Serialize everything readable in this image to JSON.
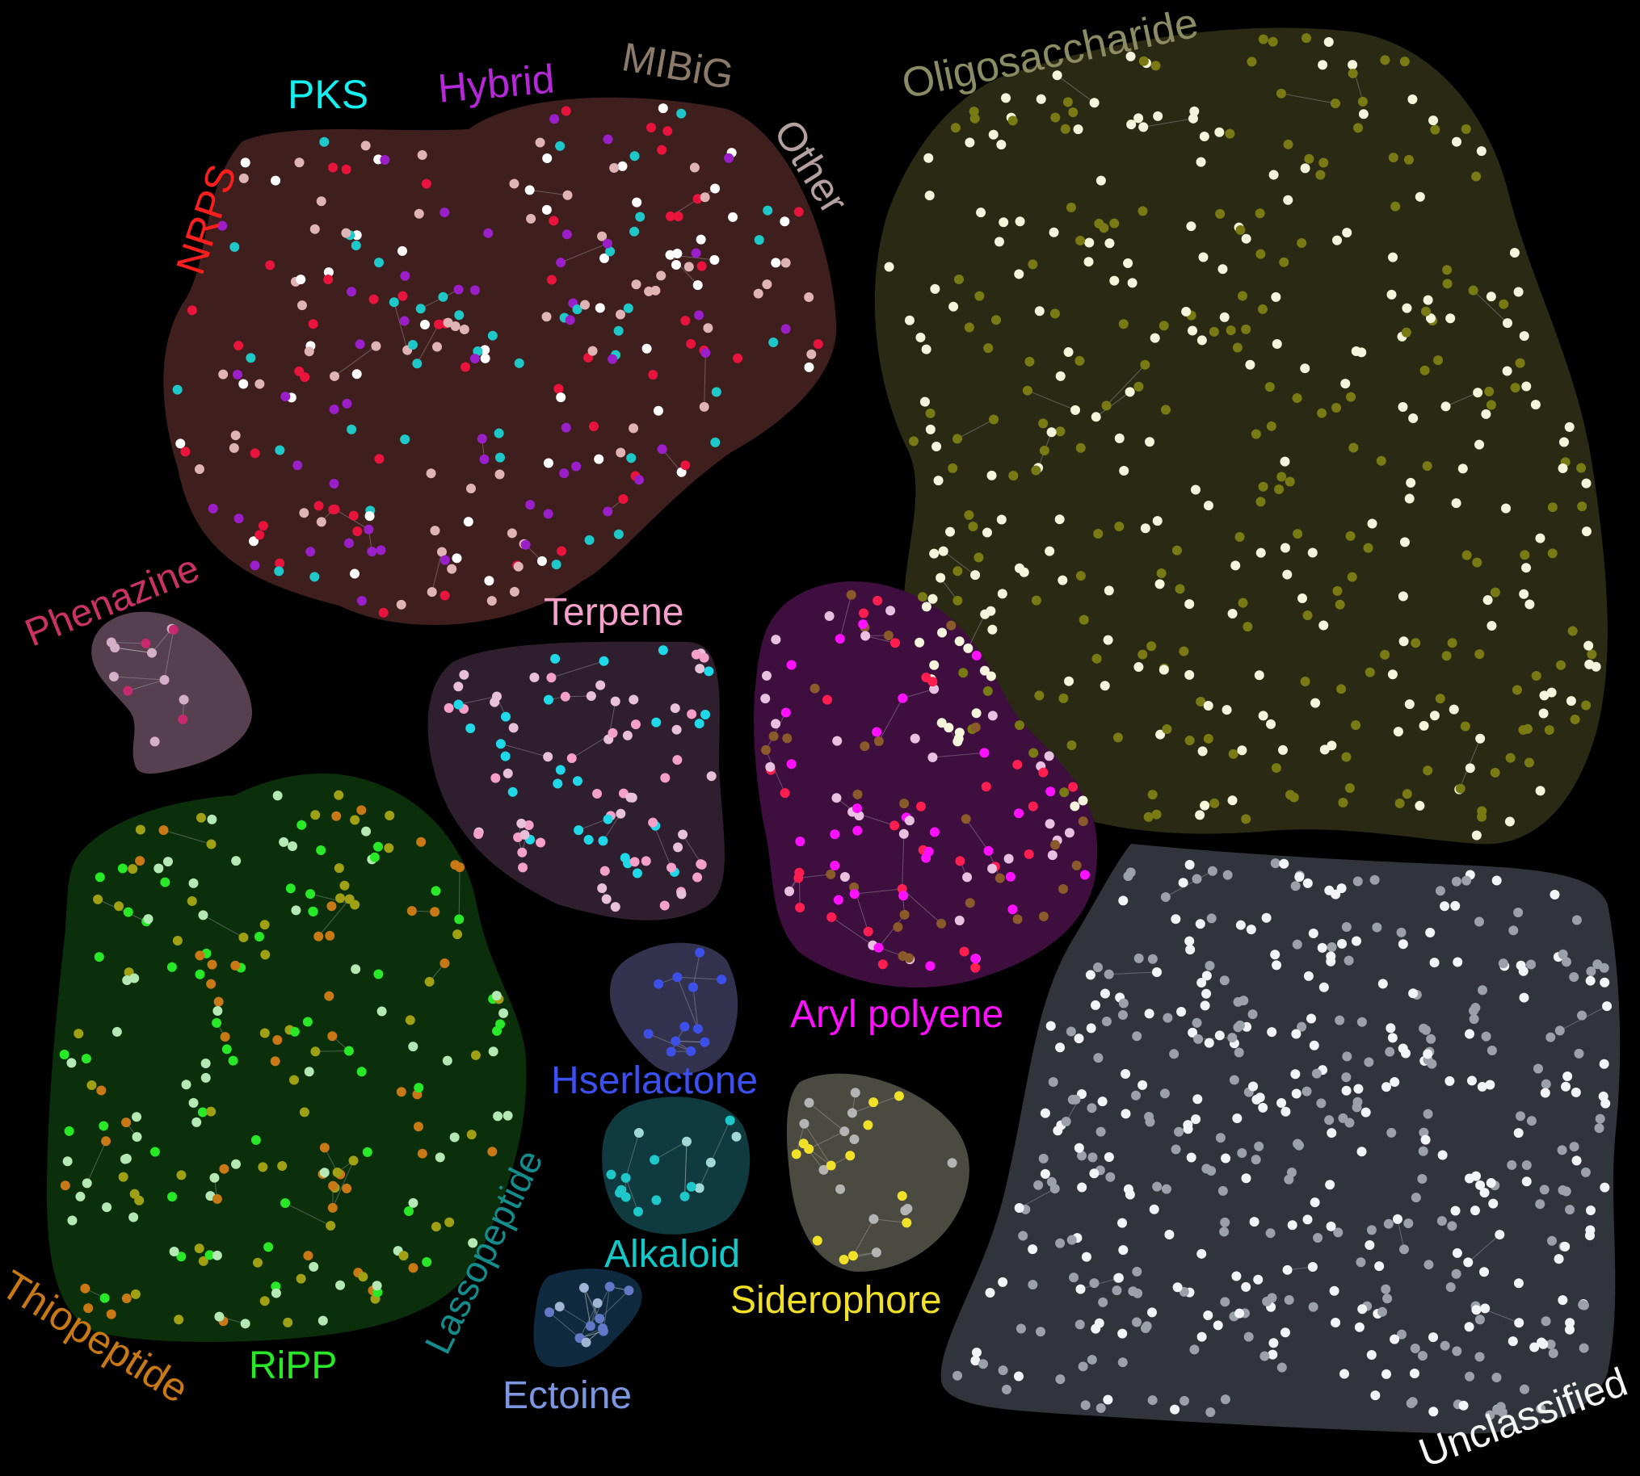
{
  "regions": [
    {
      "key": "nrps",
      "fill": "#3f1e1e",
      "nodes": [
        "#e8143c",
        "#9b1fc8",
        "#1fc8c8",
        "#e0b4b4",
        "#ffffff"
      ]
    },
    {
      "key": "oligosaccharide",
      "fill": "#2a2a14",
      "nodes": [
        "#7a7a14",
        "#f5f5dc"
      ]
    },
    {
      "key": "phenazine",
      "fill": "#56404f",
      "nodes": [
        "#d4b0c8",
        "#c8286e"
      ]
    },
    {
      "key": "terpene",
      "fill": "#2f1e2e",
      "nodes": [
        "#f5a0c8",
        "#e8c0d8",
        "#1fd8e8"
      ]
    },
    {
      "key": "aryl_polyene",
      "fill": "#3e0e3e",
      "nodes": [
        "#ff10ff",
        "#e8c0e0",
        "#8b5a2b",
        "#ff1e50"
      ]
    },
    {
      "key": "ripp",
      "fill": "#0b2e0b",
      "nodes": [
        "#28e828",
        "#b4e8b4",
        "#c87814",
        "#a0a014"
      ]
    },
    {
      "key": "hserlactone",
      "fill": "#32324e",
      "nodes": [
        "#3c50e8"
      ]
    },
    {
      "key": "alkaloid",
      "fill": "#0f3a3f",
      "nodes": [
        "#1fc8c8",
        "#a0d8d8"
      ]
    },
    {
      "key": "siderophore",
      "fill": "#4a4a40",
      "nodes": [
        "#f0e028",
        "#b4b4b4"
      ]
    },
    {
      "key": "ectoine",
      "fill": "#0f2a3f",
      "nodes": [
        "#6478c8",
        "#a0b4d4"
      ]
    },
    {
      "key": "unclassified",
      "fill": "#31353b",
      "nodes": [
        "#f2f4f8",
        "#9ca0a8"
      ]
    }
  ],
  "labels": {
    "nrps": "NRPS",
    "pks": "PKS",
    "hybrid": "Hybrid",
    "mibig": "MIBiG",
    "other": "Other",
    "oligosaccharide": "Oligosaccharide",
    "phenazine": "Phenazine",
    "terpene": "Terpene",
    "aryl_polyene": "Aryl polyene",
    "thiopeptide": "Thiopeptide",
    "ripp": "RiPP",
    "lassopeptide": "Lassopeptide",
    "hserlactone": "Hserlactone",
    "alkaloid": "Alkaloid",
    "siderophore": "Siderophore",
    "ectoine": "Ectoine",
    "unclassified": "Unclassified"
  },
  "label_colors": {
    "nrps": "#ff1e1e",
    "pks": "#14f0f0",
    "hybrid": "#b428d8",
    "mibig": "#8c7b6b",
    "other": "#b4a0a0",
    "oligosaccharide": "#8c8c64",
    "phenazine": "#c83264",
    "terpene": "#f5a0c8",
    "aryl_polyene": "#ff10ff",
    "thiopeptide": "#c87814",
    "ripp": "#28e828",
    "lassopeptide": "#148c8c",
    "hserlactone": "#3c50f0",
    "alkaloid": "#14c8c8",
    "siderophore": "#f0e028",
    "ectoine": "#7c96e0",
    "unclassified": "#f5f5f5"
  }
}
